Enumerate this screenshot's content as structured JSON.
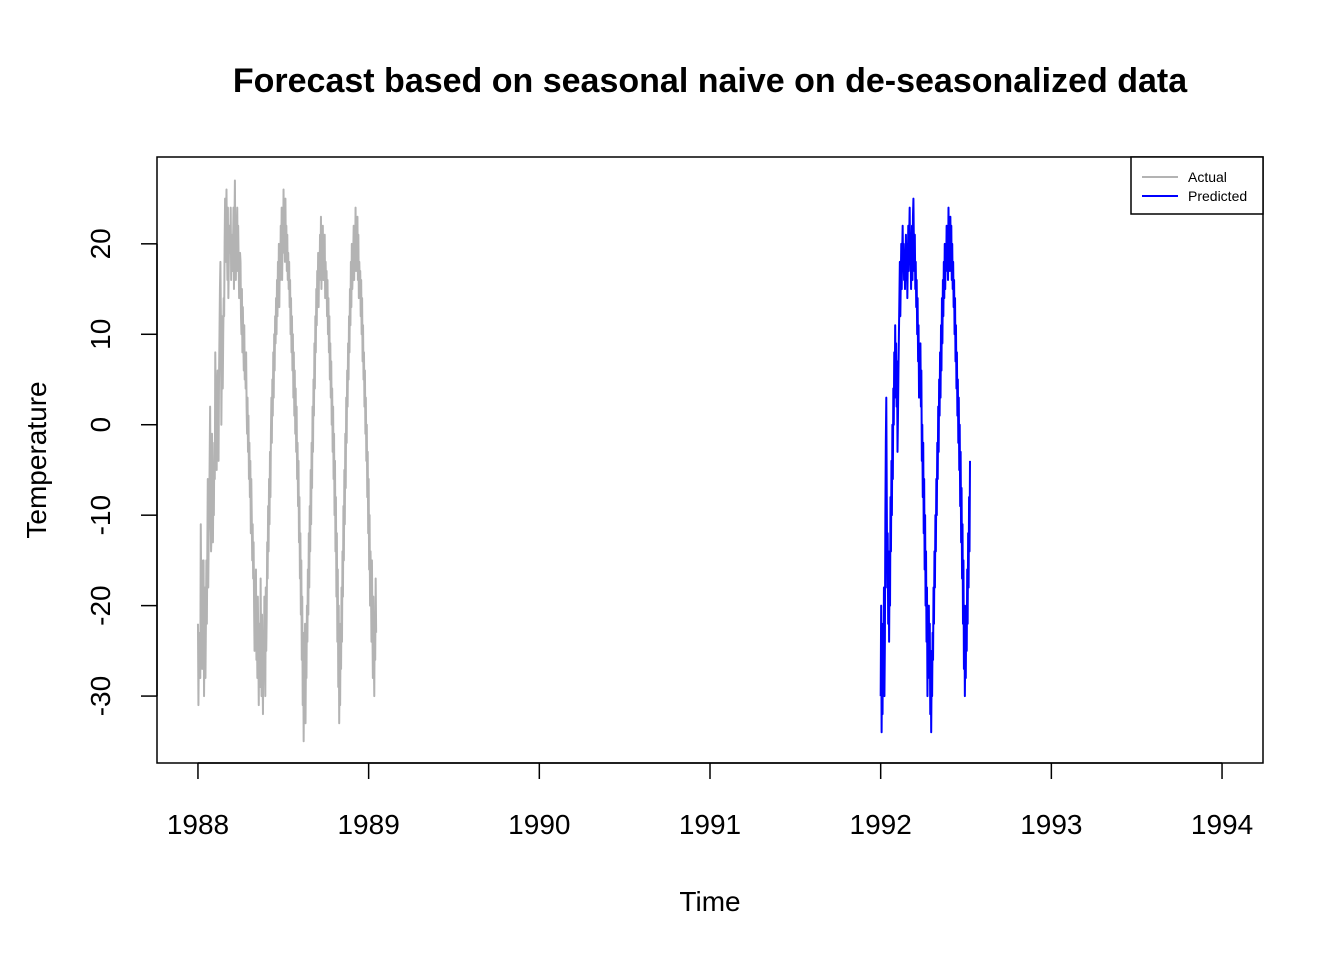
{
  "chart_data": {
    "type": "line",
    "title": "Forecast based on seasonal naive on de-seasonalized data",
    "xlabel": "Time",
    "ylabel": "Temperature",
    "xlim": [
      1987.76,
      1994.24
    ],
    "ylim": [
      -37.4,
      29.6
    ],
    "x_ticks": [
      {
        "value": 1988,
        "label": "1988"
      },
      {
        "value": 1989,
        "label": "1989"
      },
      {
        "value": 1990,
        "label": "1990"
      },
      {
        "value": 1991,
        "label": "1991"
      },
      {
        "value": 1992,
        "label": "1992"
      },
      {
        "value": 1993,
        "label": "1993"
      },
      {
        "value": 1994,
        "label": "1994"
      }
    ],
    "y_ticks": [
      {
        "value": -30,
        "label": "-30"
      },
      {
        "value": -20,
        "label": "-20"
      },
      {
        "value": -10,
        "label": "-10"
      },
      {
        "value": 0,
        "label": "0"
      },
      {
        "value": 10,
        "label": "10"
      },
      {
        "value": 20,
        "label": "20"
      }
    ],
    "legend": {
      "position": "top-right",
      "entries": [
        {
          "label": "Actual",
          "color": "#b3b3b3"
        },
        {
          "label": "Predicted",
          "color": "#0000ff"
        }
      ]
    },
    "series": [
      {
        "name": "Actual",
        "color": "#b3b3b3",
        "x_start": 1988.0,
        "x_step": 0.00274,
        "values": [
          -22,
          -31,
          -24,
          -26,
          -23,
          -28,
          -11,
          -19,
          -15,
          -27,
          -26,
          -20,
          -15,
          -30,
          -24,
          -18,
          -28,
          -22,
          -15,
          -22,
          -14,
          -6,
          -18,
          -12,
          -10,
          -4,
          2,
          -8,
          -14,
          -12,
          -1,
          -8,
          -13,
          -6,
          -10,
          -2,
          -6,
          8,
          2,
          -3,
          -5,
          4,
          6,
          -2,
          -4,
          5,
          10,
          15,
          18,
          12,
          0,
          6,
          12,
          4,
          10,
          14,
          12,
          20,
          25,
          18,
          22,
          26,
          20,
          16,
          24,
          14,
          18,
          22,
          20,
          19,
          24,
          16,
          21,
          18,
          17,
          20,
          24,
          15,
          22,
          27,
          18,
          16,
          20,
          21,
          24,
          17,
          22,
          18,
          14,
          16,
          19,
          18,
          12,
          10,
          15,
          8,
          13,
          9,
          6,
          11,
          5,
          7,
          4,
          8,
          2,
          -1,
          3,
          -3,
          1,
          -6,
          -2,
          -8,
          -4,
          -12,
          -6,
          -10,
          -15,
          -11,
          -17,
          -13,
          -20,
          -25,
          -18,
          -22,
          -16,
          -26,
          -21,
          -28,
          -19,
          -24,
          -31,
          -22,
          -26,
          -29,
          -17,
          -25,
          -30,
          -21,
          -27,
          -32,
          -23,
          -28,
          -19,
          -24,
          -30,
          -18,
          -25,
          -21,
          -13,
          -17,
          -9,
          -14,
          -6,
          -11,
          -3,
          -8,
          -1,
          3,
          -2,
          5,
          1,
          8,
          3,
          10,
          6,
          12,
          9,
          14,
          10,
          16,
          12,
          18,
          14,
          20,
          13,
          19,
          16,
          22,
          18,
          24,
          16,
          21,
          19,
          26,
          20,
          23,
          18,
          25,
          19,
          22,
          17,
          21,
          16,
          19,
          15,
          18,
          13,
          16,
          10,
          14,
          8,
          12,
          6,
          10,
          3,
          8,
          1,
          6,
          -1,
          4,
          -3,
          2,
          -6,
          -2,
          -9,
          -4,
          -13,
          -8,
          -17,
          -12,
          -21,
          -15,
          -26,
          -19,
          -31,
          -23,
          -35,
          -27,
          -30,
          -22,
          -33,
          -25,
          -28,
          -20,
          -24,
          -16,
          -21,
          -12,
          -18,
          -9,
          -14,
          -5,
          -11,
          -2,
          -7,
          2,
          -3,
          5,
          1,
          9,
          4,
          12,
          8,
          15,
          11,
          17,
          14,
          19,
          13,
          18,
          16,
          21,
          17,
          23,
          15,
          20,
          18,
          22,
          16,
          19,
          17,
          21,
          14,
          18,
          15,
          17,
          12,
          16,
          10,
          14,
          8,
          12,
          5,
          9,
          3,
          7,
          0,
          4,
          -3,
          2,
          -6,
          -1,
          -10,
          -4,
          -14,
          -8,
          -19,
          -12,
          -24,
          -16,
          -29,
          -20,
          -33,
          -25,
          -31,
          -22,
          -27,
          -18,
          -24,
          -14,
          -19,
          -9,
          -15,
          -5,
          -11,
          -1,
          -7,
          3,
          -2,
          6,
          2,
          9,
          5,
          12,
          8,
          15,
          11,
          18,
          13,
          20,
          15,
          17,
          19,
          22,
          16,
          21,
          18,
          24,
          17,
          20,
          19,
          23,
          16,
          21,
          14,
          18,
          15,
          17,
          12,
          16,
          10,
          14,
          7,
          11,
          5,
          8,
          2,
          6,
          -1,
          3,
          -4,
          0,
          -8,
          -3,
          -12,
          -6,
          -16,
          -10,
          -20,
          -14,
          -18,
          -24,
          -15,
          -22,
          -28,
          -19,
          -25,
          -30,
          -21,
          -26,
          -17,
          -23
        ]
      },
      {
        "name": "Predicted",
        "color": "#0000ff",
        "x_start": 1992.0,
        "x_step": 0.00274,
        "values": [
          -30,
          -20,
          -34,
          -25,
          -32,
          -22,
          -28,
          -18,
          -30,
          -24,
          -10,
          -2,
          3,
          -8,
          -18,
          -12,
          -22,
          -14,
          -24,
          -16,
          -20,
          -8,
          -14,
          -4,
          -10,
          0,
          -6,
          4,
          0,
          8,
          3,
          11,
          5,
          9,
          2,
          7,
          -3,
          1,
          6,
          10,
          14,
          18,
          12,
          16,
          20,
          15,
          19,
          22,
          17,
          20,
          16,
          19,
          15,
          18,
          21,
          16,
          20,
          14,
          18,
          22,
          17,
          21,
          24,
          18,
          20,
          15,
          19,
          22,
          16,
          23,
          25,
          20,
          17,
          21,
          15,
          18,
          13,
          16,
          10,
          14,
          7,
          11,
          3,
          8,
          5,
          9,
          2,
          6,
          -4,
          0,
          -8,
          -2,
          -12,
          -6,
          -16,
          -10,
          -20,
          -14,
          -24,
          -18,
          -30,
          -22,
          -26,
          -20,
          -28,
          -22,
          -32,
          -25,
          -34,
          -27,
          -30,
          -23,
          -26,
          -18,
          -22,
          -14,
          -18,
          -10,
          -14,
          -6,
          -10,
          -2,
          -6,
          2,
          -3,
          5,
          1,
          8,
          3,
          11,
          6,
          14,
          9,
          16,
          12,
          18,
          14,
          20,
          15,
          19,
          17,
          22,
          18,
          20,
          16,
          24,
          19,
          21,
          17,
          23,
          18,
          22,
          16,
          20,
          15,
          18,
          13,
          16,
          10,
          14,
          7,
          11,
          4,
          8,
          1,
          5,
          -2,
          3,
          -5,
          0,
          -9,
          -3,
          -13,
          -7,
          -17,
          -11,
          -22,
          -15,
          -27,
          -20,
          -30,
          -24,
          -28,
          -20,
          -25,
          -16,
          -22,
          -12,
          -18,
          -8,
          -14,
          -4
        ]
      }
    ]
  }
}
